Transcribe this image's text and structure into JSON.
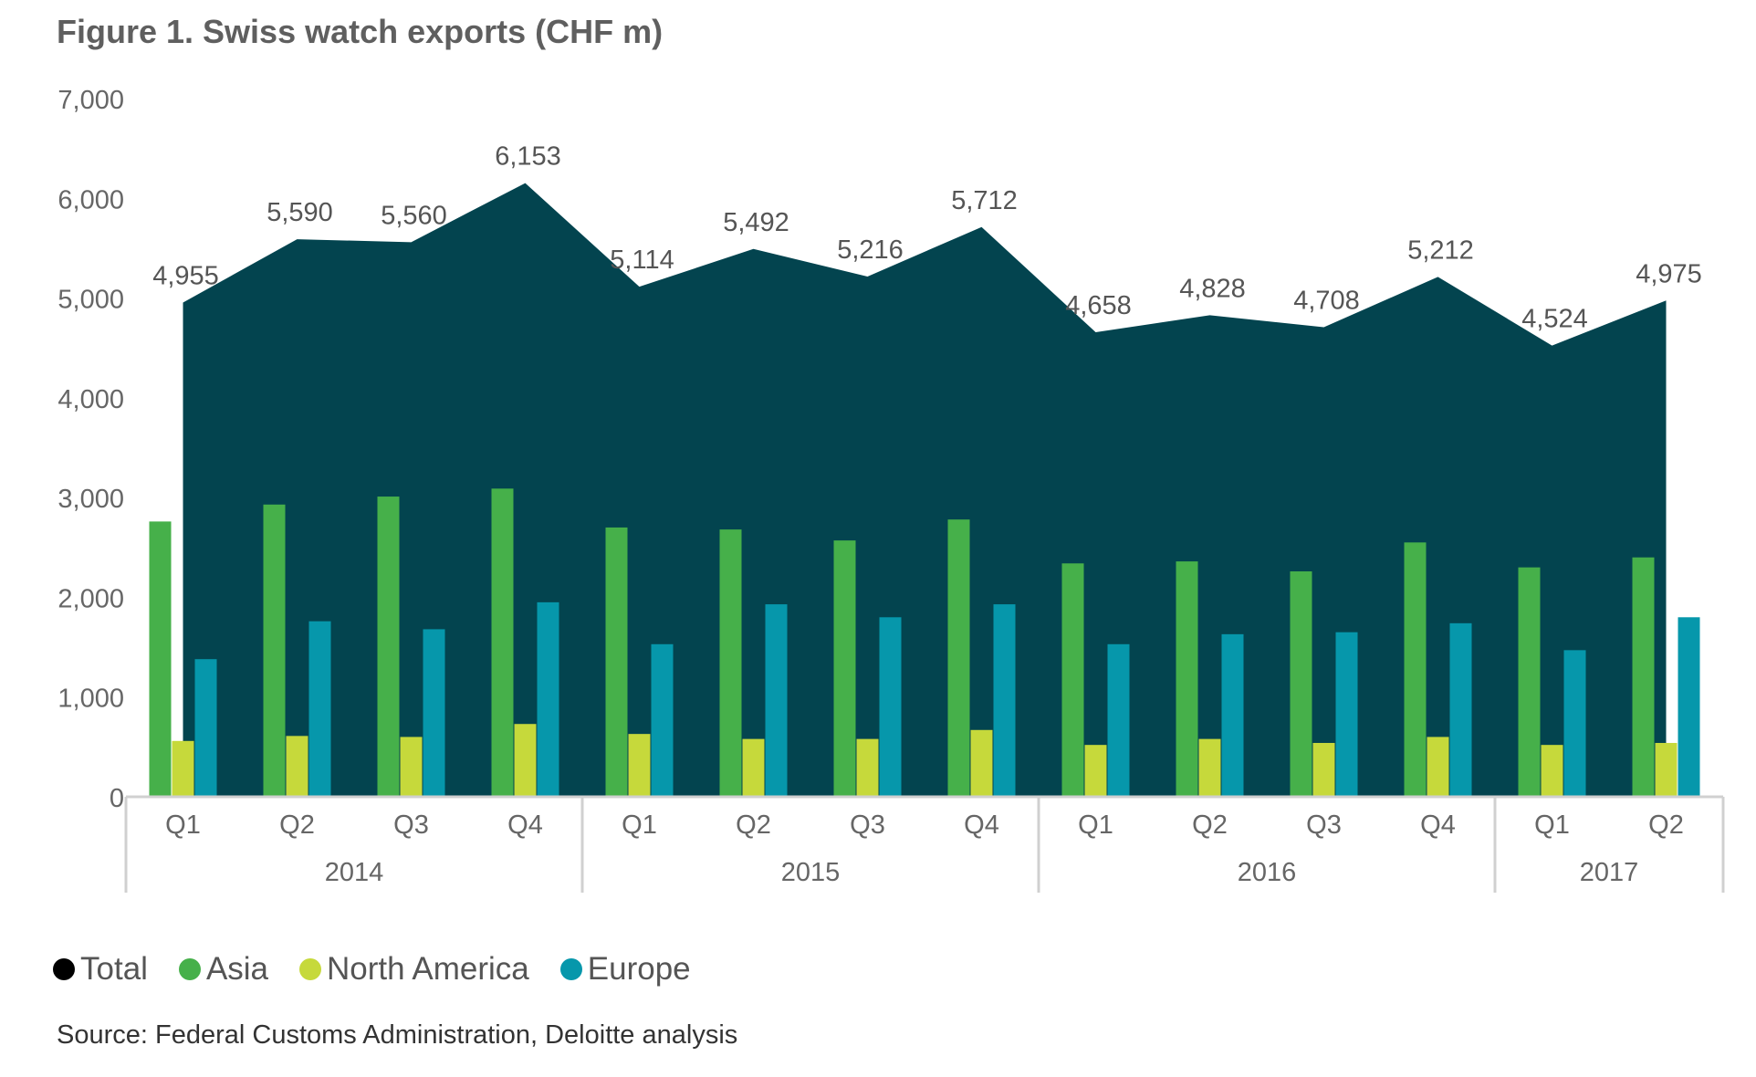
{
  "title": "Figure 1. Swiss watch exports (CHF m)",
  "source": "Source: Federal Customs Administration, Deloitte analysis",
  "colors": {
    "total": "#03444f",
    "asia": "#46b04a",
    "north_america": "#c6d93b",
    "europe": "#0697ab",
    "axis_text": "#666666",
    "axis_line": "#d0d0d0"
  },
  "legend": [
    {
      "label": "Total",
      "color": "#000000"
    },
    {
      "label": "Asia",
      "color": "#46b04a"
    },
    {
      "label": "North America",
      "color": "#c6d93b"
    },
    {
      "label": "Europe",
      "color": "#0697ab"
    }
  ],
  "chart_data": {
    "type": "bar",
    "title": "Figure 1. Swiss watch exports (CHF m)",
    "xlabel": "",
    "ylabel": "",
    "ylim": [
      0,
      7000
    ],
    "yticks": [
      0,
      1000,
      2000,
      3000,
      4000,
      5000,
      6000,
      7000
    ],
    "ytick_labels": [
      "0",
      "1,000",
      "2,000",
      "3,000",
      "4,000",
      "5,000",
      "6,000",
      "7,000"
    ],
    "categories": [
      "Q1",
      "Q2",
      "Q3",
      "Q4",
      "Q1",
      "Q2",
      "Q3",
      "Q4",
      "Q1",
      "Q2",
      "Q3",
      "Q4",
      "Q1",
      "Q2"
    ],
    "year_groups": [
      {
        "label": "2014",
        "count": 4
      },
      {
        "label": "2015",
        "count": 4
      },
      {
        "label": "2016",
        "count": 4
      },
      {
        "label": "2017",
        "count": 2
      }
    ],
    "total": {
      "name": "Total",
      "type": "area",
      "values": [
        4955,
        5590,
        5560,
        6153,
        5114,
        5492,
        5216,
        5712,
        4658,
        4828,
        4708,
        5212,
        4524,
        4975
      ],
      "labels": [
        "4,955",
        "5,590",
        "5,560",
        "6,153",
        "5,114",
        "5,492",
        "5,216",
        "5,712",
        "4,658",
        "4,828",
        "4,708",
        "5,212",
        "4,524",
        "4,975"
      ]
    },
    "series": [
      {
        "name": "Asia",
        "values": [
          2760,
          2930,
          3010,
          3090,
          2700,
          2680,
          2570,
          2780,
          2340,
          2360,
          2260,
          2550,
          2300,
          2400
        ]
      },
      {
        "name": "North America",
        "values": [
          560,
          610,
          600,
          730,
          630,
          580,
          580,
          670,
          520,
          580,
          540,
          600,
          520,
          540
        ]
      },
      {
        "name": "Europe",
        "values": [
          1380,
          1760,
          1680,
          1950,
          1530,
          1930,
          1800,
          1930,
          1530,
          1630,
          1650,
          1740,
          1470,
          1800
        ]
      }
    ]
  }
}
